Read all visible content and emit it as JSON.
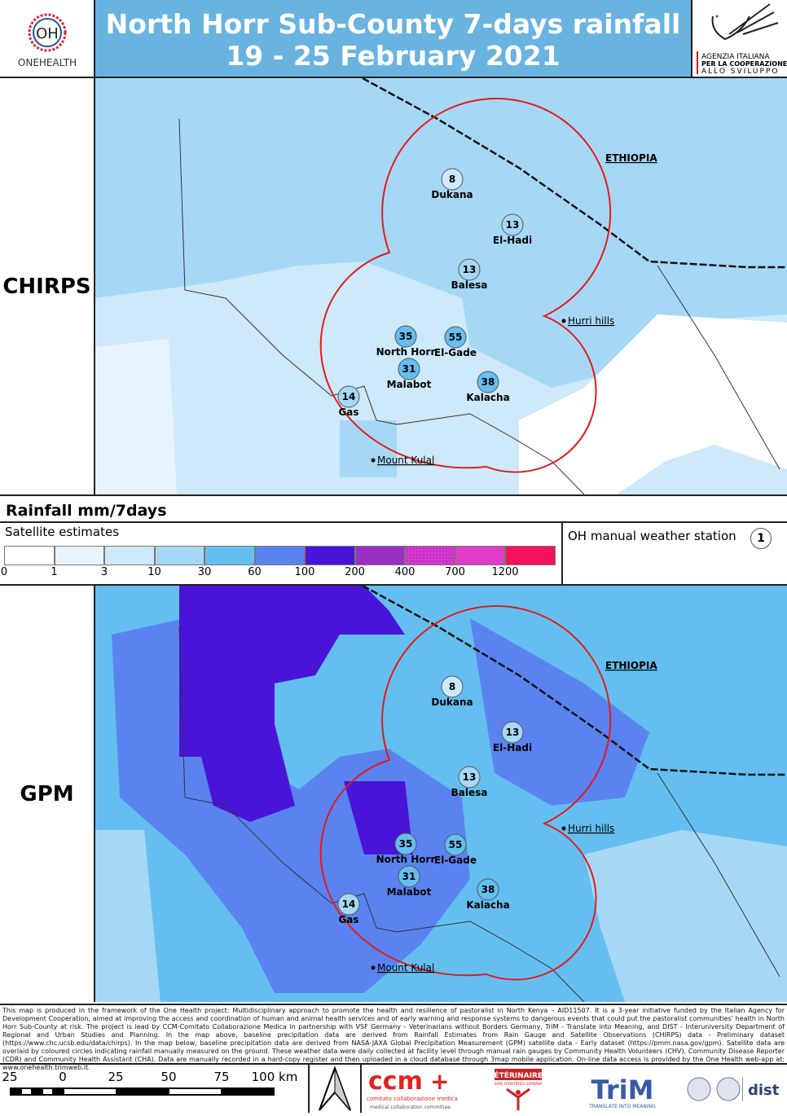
{
  "header": {
    "title_line1": "North Horr Sub-County 7-days rainfall",
    "title_line2": "19 - 25 February 2021",
    "left_logo": {
      "mark": "OH",
      "text": "ONEHEALTH"
    },
    "right_logo": {
      "line1": "AGENZIA ITALIANA",
      "line2": "PER LA COOPERAZIONE",
      "line3": "ALLO SVILUPPO"
    }
  },
  "maps": [
    {
      "label": "CHIRPS"
    },
    {
      "label": "GPM"
    }
  ],
  "places": {
    "country": "ETHIOPIA",
    "hurri": "Hurri hills",
    "kulal": "Mount Kulal"
  },
  "stations": [
    {
      "name": "Dukana",
      "value": "8"
    },
    {
      "name": "El-Hadi",
      "value": "13"
    },
    {
      "name": "Balesa",
      "value": "13"
    },
    {
      "name": "North Horr",
      "value": "35"
    },
    {
      "name": "El-Gade",
      "value": "55"
    },
    {
      "name": "Malabot",
      "value": "31"
    },
    {
      "name": "Kalacha",
      "value": "38"
    },
    {
      "name": "Gas",
      "value": "14"
    }
  ],
  "legend": {
    "title": "Rainfall mm/7days",
    "satellite_label": "Satellite estimates",
    "ticks": [
      "0",
      "1",
      "3",
      "10",
      "30",
      "60",
      "100",
      "200",
      "400",
      "700",
      "1200"
    ],
    "colors": [
      "#ffffff",
      "#e8f4fc",
      "#cde9fa",
      "#a6d8f6",
      "#64bff0",
      "#5a83f0",
      "#4a14d8",
      "#9b2ec4",
      "#d63ad2",
      "#e03ccc",
      "#f5105a"
    ],
    "station_label": "OH manual weather station",
    "station_sample": "1"
  },
  "footer": {
    "text": "This map is produced in the framework of the One Health project: Multidisciplinary approach to promote the health and resilience of pastoralist in North Kenya – AID11507. It is a 3-year initiative funded by the Italian Agency for Development Cooperation, aimed at improving the access and coordination of human and animal health services and of early warning and response systems to dangerous events that could put the pastoralist communities' health in North Horr Sub-County at risk. The project is lead by CCM-Comitato Collaborazione Medica in partnership with VSF Germany - Veterinarians without Borders Germany, TriM - Translate into Meaning, and DIST - Interuniversity Department of Regional and Urban Studies and Planning. In the map above, baseline precipitation data are derived from Rainfall Estimates from Rain Gauge and Satellite Observations (CHIRPS) data - Preliminary dataset (https://www.chc.ucsb.edu/data/chirps). In the map below, baseline precipitation data are derived from NASA-JAXA Global Precipitation Measurement (GPM) satellite data - Early dataset (https://pmm.nasa.gov/gpm). Satellite data are overlaid by coloured circles indicating rainfall manually measured on the ground. These weather data were daily collected at facility level through manual rain gauges by Community Health Volunteers (CHV), Community Disease Reporter (CDR) and Community Health Assistant (CHA). Data are manually recorded in a hard-copy register and then uploaded in a cloud database through 3map mobile application. On-line data access is provided by the One Health web-app at: www.onehealth.trimweb.it."
  },
  "scale": {
    "ticks": [
      "25",
      "0",
      "25",
      "50",
      "75",
      "100 km"
    ]
  },
  "logos": {
    "ccm": "ccm",
    "ccm_sub1": "comitato collaborazione medica",
    "ccm_sub2": "medical collaboration committee",
    "vet": "VÉTÉRINAIRES",
    "vet_sub": "SANS FRONTIÈRES GERMANY",
    "trim": "TriM",
    "trim_sub": "TRANSLATE INTO MEANING",
    "dist": "dist"
  }
}
